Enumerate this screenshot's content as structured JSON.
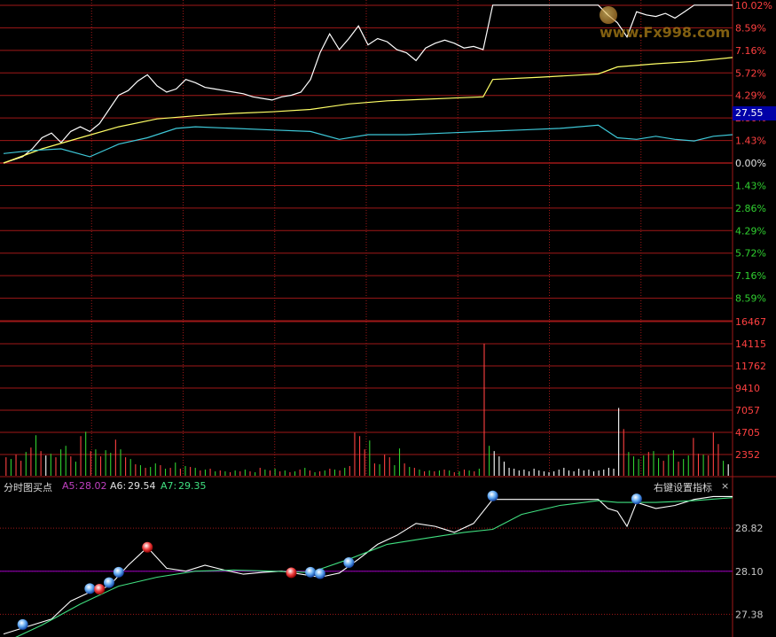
{
  "price_axis_up_labels": [
    "10.02%",
    "8.59%",
    "7.16%",
    "5.72%",
    "4.29%",
    "2.86%",
    "1.43%",
    "0.00%"
  ],
  "price_axis_down_labels": [
    "1.43%",
    "2.86%",
    "4.29%",
    "5.72%",
    "7.16%",
    "8.59%"
  ],
  "volume_axis_labels": [
    "16467",
    "14115",
    "11762",
    "9410",
    "7057",
    "4705",
    "2352"
  ],
  "current_price_tag": "27.55",
  "indicator": {
    "name": "分时图买点",
    "a5_label": "A5:",
    "a5_value": "28.02",
    "a6_label": "A6:",
    "a6_value": "29.54",
    "a7_label": "A7:",
    "a7_value": "29.35",
    "settings_label": "右键设置指标",
    "close_glyph": "×",
    "axis_labels": [
      "28.82",
      "28.10",
      "27.38"
    ]
  },
  "watermark_text": "www.Fx998.com",
  "colors": {
    "background": "#000000",
    "grid": "#a01818",
    "price_line": "#ffffff",
    "avg_line": "#ffff66",
    "rsi_line": "#3ec8d8",
    "up_label": "#ff4040",
    "down_label": "#30d030",
    "volume_up": "#ff4040",
    "volume_down": "#30d030",
    "volume_flat": "#ffffff",
    "ind_a5": "#c040c0",
    "ind_line": "#ffffff",
    "ind_ma": "#40e080",
    "ind_ref": "#8000a0"
  },
  "chart_data": [
    {
      "type": "line",
      "panel": "intraday-price",
      "y_unit": "percent change",
      "ylim": [
        -9.2,
        10.02
      ],
      "series": [
        {
          "color": "white",
          "points": [
            [
              0,
              0
            ],
            [
              1,
              0.2
            ],
            [
              2,
              0.4
            ],
            [
              3,
              0.9
            ],
            [
              4,
              1.6
            ],
            [
              5,
              1.9
            ],
            [
              6,
              1.3
            ],
            [
              7,
              2.0
            ],
            [
              8,
              2.3
            ],
            [
              9,
              2.0
            ],
            [
              10,
              2.5
            ],
            [
              11,
              3.4
            ],
            [
              12,
              4.3
            ],
            [
              13,
              4.6
            ],
            [
              14,
              5.2
            ],
            [
              15,
              5.6
            ],
            [
              16,
              4.9
            ],
            [
              17,
              4.5
            ],
            [
              18,
              4.7
            ],
            [
              19,
              5.3
            ],
            [
              20,
              5.1
            ],
            [
              21,
              4.8
            ],
            [
              22,
              4.7
            ],
            [
              23,
              4.6
            ],
            [
              24,
              4.5
            ],
            [
              25,
              4.4
            ],
            [
              26,
              4.2
            ],
            [
              27,
              4.1
            ],
            [
              28,
              4.0
            ],
            [
              29,
              4.2
            ],
            [
              30,
              4.3
            ],
            [
              31,
              4.5
            ],
            [
              32,
              5.3
            ],
            [
              33,
              7.0
            ],
            [
              34,
              8.2
            ],
            [
              35,
              7.2
            ],
            [
              36,
              7.9
            ],
            [
              37,
              8.7
            ],
            [
              38,
              7.5
            ],
            [
              39,
              7.9
            ],
            [
              40,
              7.7
            ],
            [
              41,
              7.2
            ],
            [
              42,
              7.0
            ],
            [
              43,
              6.5
            ],
            [
              44,
              7.3
            ],
            [
              45,
              7.6
            ],
            [
              46,
              7.8
            ],
            [
              47,
              7.6
            ],
            [
              48,
              7.3
            ],
            [
              49,
              7.4
            ],
            [
              50,
              7.2
            ],
            [
              51,
              10.02
            ],
            [
              52,
              10.02
            ],
            [
              53,
              10.02
            ],
            [
              54,
              10.02
            ],
            [
              55,
              10.02
            ],
            [
              56,
              10.02
            ],
            [
              57,
              10.02
            ],
            [
              58,
              10.02
            ],
            [
              59,
              10.02
            ],
            [
              60,
              10.02
            ],
            [
              61,
              10.02
            ],
            [
              62,
              10.02
            ],
            [
              63,
              9.4
            ],
            [
              64,
              8.9
            ],
            [
              65,
              8.0
            ],
            [
              66,
              9.6
            ],
            [
              67,
              9.4
            ],
            [
              68,
              9.3
            ],
            [
              69,
              9.5
            ],
            [
              70,
              9.2
            ],
            [
              71,
              9.6
            ],
            [
              72,
              10.02
            ],
            [
              73,
              10.02
            ],
            [
              74,
              10.02
            ],
            [
              75,
              10.02
            ],
            [
              76,
              10.02
            ]
          ]
        },
        {
          "color": "yellow",
          "points": [
            [
              0,
              0
            ],
            [
              4,
              0.9
            ],
            [
              8,
              1.6
            ],
            [
              12,
              2.3
            ],
            [
              16,
              2.8
            ],
            [
              20,
              3.0
            ],
            [
              24,
              3.15
            ],
            [
              28,
              3.25
            ],
            [
              32,
              3.4
            ],
            [
              36,
              3.75
            ],
            [
              40,
              3.95
            ],
            [
              44,
              4.05
            ],
            [
              48,
              4.15
            ],
            [
              50,
              4.2
            ],
            [
              51,
              5.3
            ],
            [
              56,
              5.45
            ],
            [
              62,
              5.65
            ],
            [
              64,
              6.1
            ],
            [
              68,
              6.3
            ],
            [
              72,
              6.45
            ],
            [
              76,
              6.7
            ]
          ]
        },
        {
          "color": "cyan",
          "points": [
            [
              0,
              0.6
            ],
            [
              3,
              0.8
            ],
            [
              6,
              0.9
            ],
            [
              9,
              0.4
            ],
            [
              12,
              1.2
            ],
            [
              15,
              1.6
            ],
            [
              18,
              2.2
            ],
            [
              20,
              2.3
            ],
            [
              24,
              2.2
            ],
            [
              28,
              2.1
            ],
            [
              32,
              2.0
            ],
            [
              35,
              1.5
            ],
            [
              38,
              1.8
            ],
            [
              42,
              1.8
            ],
            [
              46,
              1.9
            ],
            [
              50,
              2.0
            ],
            [
              54,
              2.1
            ],
            [
              58,
              2.2
            ],
            [
              62,
              2.4
            ],
            [
              64,
              1.6
            ],
            [
              66,
              1.5
            ],
            [
              68,
              1.7
            ],
            [
              70,
              1.5
            ],
            [
              72,
              1.4
            ],
            [
              74,
              1.7
            ],
            [
              76,
              1.8
            ]
          ]
        }
      ]
    },
    {
      "type": "bar",
      "panel": "volume",
      "ylim": [
        0,
        17600
      ],
      "values": [
        2100,
        1900,
        2400,
        1700,
        2700,
        3200,
        4600,
        2800,
        2300,
        2500,
        2100,
        3000,
        3400,
        2200,
        1600,
        4500,
        5000,
        2800,
        3000,
        2200,
        2900,
        2600,
        4100,
        3000,
        2100,
        1900,
        1300,
        1200,
        900,
        1000,
        1400,
        1200,
        800,
        900,
        1500,
        800,
        1100,
        1000,
        900,
        600,
        700,
        800,
        500,
        600,
        500,
        400,
        600,
        500,
        700,
        500,
        400,
        900,
        700,
        600,
        800,
        500,
        600,
        400,
        500,
        700,
        900,
        600,
        400,
        500,
        600,
        800,
        700,
        600,
        900,
        1100,
        4900,
        4500,
        3000,
        4000,
        1400,
        1300,
        2400,
        2100,
        1200,
        3100,
        1400,
        1000,
        900,
        700,
        500,
        600,
        500,
        600,
        700,
        600,
        400,
        500,
        700,
        600,
        500,
        800,
        15000,
        3400,
        2800,
        2200,
        1600,
        900,
        800,
        600,
        700,
        500,
        800,
        600,
        500,
        400,
        500,
        700,
        900,
        600,
        500,
        800,
        600,
        700,
        500,
        600,
        700,
        900,
        800,
        7700,
        5300,
        2700,
        2200,
        1900,
        2300,
        2700,
        2800,
        2000,
        1700,
        2400,
        2900,
        1600,
        1900,
        2300,
        4300,
        2500,
        2400,
        2300,
        4900,
        3600,
        1700,
        1300
      ],
      "directions": [
        "u",
        "d",
        "u",
        "u",
        "d",
        "u",
        "d",
        "u",
        "f",
        "d",
        "u",
        "d",
        "d",
        "u",
        "d",
        "u",
        "d",
        "u",
        "d",
        "u",
        "d",
        "d",
        "u",
        "d",
        "u",
        "d",
        "u",
        "d",
        "u",
        "d",
        "d",
        "u",
        "d",
        "u",
        "d",
        "u",
        "d",
        "u",
        "d",
        "u",
        "d",
        "u",
        "d",
        "u",
        "d",
        "u",
        "d",
        "u",
        "d",
        "u",
        "d",
        "u",
        "d",
        "u",
        "d",
        "u",
        "d",
        "u",
        "d",
        "u",
        "d",
        "u",
        "d",
        "u",
        "d",
        "u",
        "d",
        "u",
        "d",
        "u",
        "u",
        "u",
        "u",
        "d",
        "u",
        "d",
        "u",
        "u",
        "d",
        "d",
        "u",
        "d",
        "u",
        "d",
        "u",
        "d",
        "u",
        "d",
        "u",
        "d",
        "u",
        "d",
        "u",
        "d",
        "u",
        "d",
        "u",
        "d",
        "f",
        "f",
        "f",
        "f",
        "f",
        "f",
        "f",
        "f",
        "f",
        "f",
        "f",
        "f",
        "f",
        "f",
        "f",
        "f",
        "f",
        "f",
        "f",
        "f",
        "f",
        "f",
        "f",
        "f",
        "f",
        "f",
        "u",
        "d",
        "d",
        "d",
        "d",
        "u",
        "d",
        "d",
        "u",
        "d",
        "d",
        "u",
        "d",
        "d",
        "u",
        "u",
        "d",
        "u",
        "u",
        "u",
        "d",
        "f"
      ]
    },
    {
      "type": "line",
      "panel": "indicator",
      "ylim": [
        27.0,
        29.4
      ],
      "series": [
        {
          "color": "white",
          "points": [
            [
              0,
              27.05
            ],
            [
              3,
              27.2
            ],
            [
              5,
              27.3
            ],
            [
              7,
              27.6
            ],
            [
              9,
              27.75
            ],
            [
              11,
              27.85
            ],
            [
              13,
              28.2
            ],
            [
              15,
              28.5
            ],
            [
              17,
              28.15
            ],
            [
              19,
              28.1
            ],
            [
              21,
              28.2
            ],
            [
              23,
              28.12
            ],
            [
              25,
              28.05
            ],
            [
              27,
              28.08
            ],
            [
              29,
              28.1
            ],
            [
              31,
              28.05
            ],
            [
              33,
              28.0
            ],
            [
              35,
              28.07
            ],
            [
              37,
              28.3
            ],
            [
              39,
              28.55
            ],
            [
              41,
              28.7
            ],
            [
              43,
              28.9
            ],
            [
              45,
              28.85
            ],
            [
              47,
              28.75
            ],
            [
              49,
              28.9
            ],
            [
              51,
              29.3
            ],
            [
              53,
              29.3
            ],
            [
              56,
              29.3
            ],
            [
              60,
              29.3
            ],
            [
              62,
              29.3
            ],
            [
              63,
              29.15
            ],
            [
              64,
              29.1
            ],
            [
              65,
              28.85
            ],
            [
              66,
              29.25
            ],
            [
              68,
              29.15
            ],
            [
              70,
              29.2
            ],
            [
              72,
              29.3
            ],
            [
              74,
              29.35
            ],
            [
              76,
              29.35
            ]
          ]
        },
        {
          "color": "green",
          "points": [
            [
              0,
              26.9
            ],
            [
              4,
              27.2
            ],
            [
              8,
              27.55
            ],
            [
              12,
              27.85
            ],
            [
              16,
              28.0
            ],
            [
              20,
              28.1
            ],
            [
              24,
              28.12
            ],
            [
              28,
              28.1
            ],
            [
              32,
              28.08
            ],
            [
              36,
              28.3
            ],
            [
              40,
              28.55
            ],
            [
              44,
              28.65
            ],
            [
              48,
              28.75
            ],
            [
              51,
              28.8
            ],
            [
              54,
              29.05
            ],
            [
              58,
              29.2
            ],
            [
              62,
              29.28
            ],
            [
              64,
              29.25
            ],
            [
              68,
              29.25
            ],
            [
              72,
              29.28
            ],
            [
              76,
              29.33
            ]
          ]
        }
      ],
      "reference_line": 28.1,
      "buy_marks_blue_x": [
        2,
        9,
        11,
        12,
        32,
        33,
        36,
        51,
        66
      ],
      "buy_marks_red_x": [
        10,
        15,
        30
      ]
    }
  ]
}
